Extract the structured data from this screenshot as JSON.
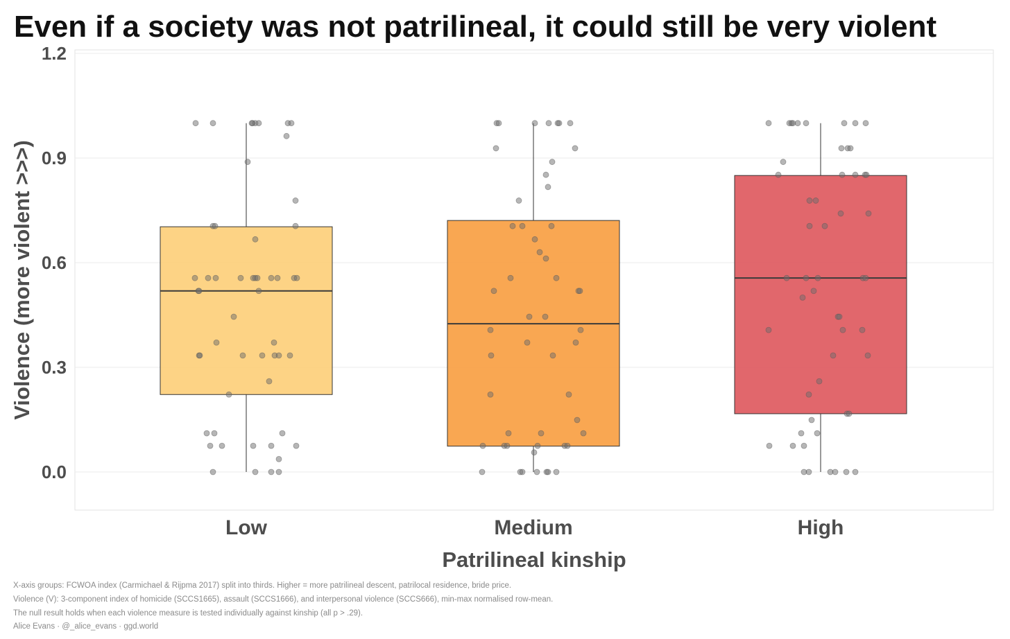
{
  "chart_data": {
    "type": "box",
    "title": "Even if a society was not patrilineal, it could still be very violent",
    "xlabel": "Patrilineal kinship",
    "ylabel": "Violence (more violent >>>)",
    "ylim": [
      -0.11,
      1.21
    ],
    "yticks": [
      0.0,
      0.3,
      0.6,
      0.9,
      1.2
    ],
    "ytick_labels": [
      "0.0",
      "0.3",
      "0.6",
      "0.9",
      "1.2"
    ],
    "grid": true,
    "categories": [
      "Low",
      "Medium",
      "High"
    ],
    "boxes": [
      {
        "name": "Low",
        "color": "#FDCF7B",
        "whisker_low": 0.0,
        "q1": 0.222,
        "median": 0.519,
        "q3": 0.703,
        "whisker_high": 1.0
      },
      {
        "name": "Medium",
        "color": "#F8A043",
        "whisker_low": 0.0,
        "q1": 0.074,
        "median": 0.425,
        "q3": 0.721,
        "whisker_high": 1.0
      },
      {
        "name": "High",
        "color": "#DE5A60",
        "whisker_low": 0.0,
        "q1": 0.167,
        "median": 0.556,
        "q3": 0.85,
        "whisker_high": 1.0
      }
    ],
    "points": [
      [
        1,
        1,
        1,
        1,
        1,
        1,
        1,
        1,
        0.963,
        0.889,
        0.778,
        0.705,
        0.705,
        0.705,
        0.667,
        0.556,
        0.556,
        0.556,
        0.556,
        0.556,
        0.556,
        0.556,
        0.556,
        0.556,
        0.556,
        0.556,
        0.519,
        0.519,
        0.519,
        0.445,
        0.371,
        0.371,
        0.334,
        0.334,
        0.334,
        0.334,
        0.334,
        0.334,
        0.334,
        0.26,
        0.222,
        0.111,
        0.111,
        0.111,
        0.075,
        0.075,
        0.075,
        0.075,
        0.075,
        0.037,
        0,
        0,
        0,
        0
      ],
      [
        1,
        1,
        1,
        1,
        1,
        1,
        1,
        0.928,
        0.928,
        0.889,
        0.852,
        0.817,
        0.778,
        0.705,
        0.705,
        0.705,
        0.667,
        0.63,
        0.612,
        0.556,
        0.556,
        0.519,
        0.519,
        0.519,
        0.445,
        0.445,
        0.407,
        0.371,
        0.371,
        0.407,
        0.334,
        0.334,
        0.222,
        0.222,
        0.149,
        0.111,
        0.111,
        0.111,
        0.075,
        0.075,
        0.075,
        0.075,
        0.075,
        0.075,
        0.056,
        0,
        0,
        0,
        0,
        0,
        0,
        0
      ],
      [
        1,
        1,
        1,
        1,
        1,
        1,
        1,
        1,
        1,
        0.889,
        0.928,
        0.928,
        0.928,
        0.852,
        0.852,
        0.852,
        0.852,
        0.852,
        0.778,
        0.778,
        0.741,
        0.741,
        0.705,
        0.705,
        0.556,
        0.556,
        0.556,
        0.556,
        0.556,
        0.5,
        0.519,
        0.445,
        0.445,
        0.407,
        0.407,
        0.407,
        0.334,
        0.334,
        0.26,
        0.222,
        0.167,
        0.167,
        0.149,
        0.111,
        0.111,
        0.075,
        0.075,
        0.075,
        0,
        0,
        0,
        0,
        0,
        0
      ]
    ],
    "notes": [
      "X-axis groups: FCWOA index (Carmichael & Rijpma 2017) split into thirds. Higher = more patrilineal descent, patrilocal residence, bride price.",
      "Violence (V): 3-component index of homicide (SCCS1665), assault (SCCS1666), and interpersonal violence (SCCS666), min-max normalised row-mean.",
      "The null result holds when each violence measure is tested individually against kinship (all p > .29).",
      "Alice Evans · @_alice_evans · ggd.world"
    ]
  }
}
